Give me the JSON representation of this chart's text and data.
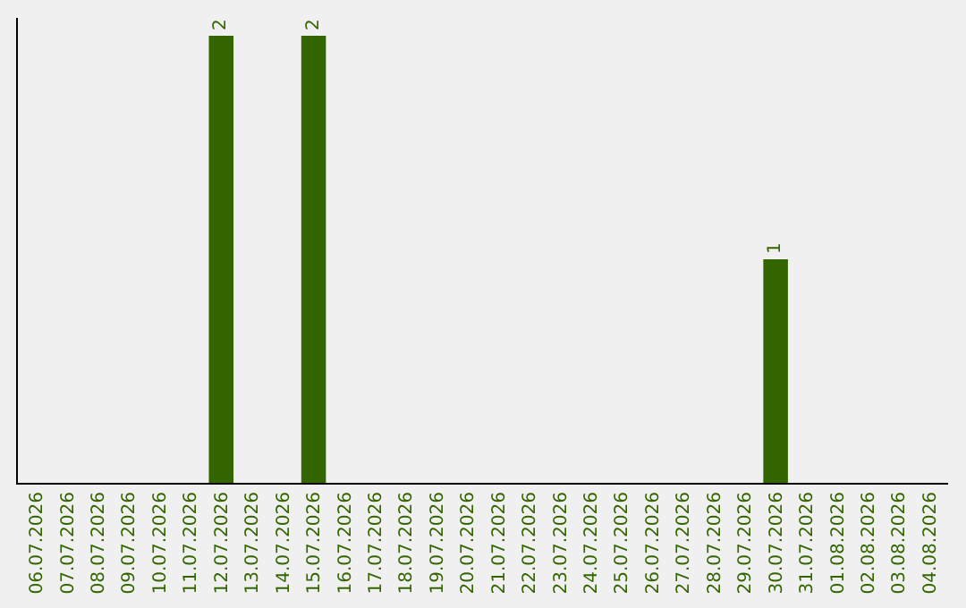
{
  "chart_data": {
    "type": "bar",
    "categories": [
      "06.07.2026",
      "07.07.2026",
      "08.07.2026",
      "09.07.2026",
      "10.07.2026",
      "11.07.2026",
      "12.07.2026",
      "13.07.2026",
      "14.07.2026",
      "15.07.2026",
      "16.07.2026",
      "17.07.2026",
      "18.07.2026",
      "19.07.2026",
      "20.07.2026",
      "21.07.2026",
      "22.07.2026",
      "23.07.2026",
      "24.07.2026",
      "25.07.2026",
      "26.07.2026",
      "27.07.2026",
      "28.07.2026",
      "29.07.2026",
      "30.07.2026",
      "31.07.2026",
      "01.08.2026",
      "02.08.2026",
      "03.08.2026",
      "04.08.2026"
    ],
    "values": [
      0,
      0,
      0,
      0,
      0,
      0,
      2,
      0,
      0,
      2,
      0,
      0,
      0,
      0,
      0,
      0,
      0,
      0,
      0,
      0,
      0,
      0,
      0,
      0,
      1,
      0,
      0,
      0,
      0,
      0
    ],
    "value_labels": [
      null,
      null,
      null,
      null,
      null,
      null,
      "2",
      null,
      null,
      "2",
      null,
      null,
      null,
      null,
      null,
      null,
      null,
      null,
      null,
      null,
      null,
      null,
      null,
      null,
      "1",
      null,
      null,
      null,
      null,
      null
    ],
    "color": "#336600",
    "ylim": [
      0,
      2.08
    ],
    "tick_labels": "x"
  }
}
